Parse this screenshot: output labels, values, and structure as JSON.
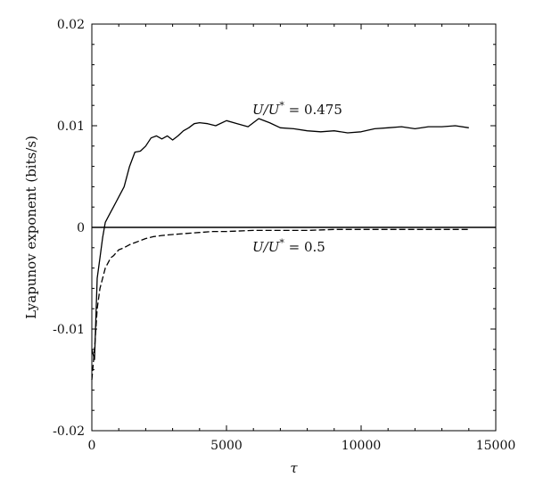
{
  "chart_data": {
    "type": "line",
    "title": "",
    "xlabel": "τ",
    "ylabel": "Lyapunov exponent (bits/s)",
    "xlim": [
      0,
      15000
    ],
    "ylim": [
      -0.02,
      0.02
    ],
    "x_ticks": [
      0,
      5000,
      10000,
      15000
    ],
    "x_tick_labels": [
      "0",
      "5000",
      "10000",
      "15000"
    ],
    "y_ticks": [
      -0.02,
      -0.01,
      0,
      0.01,
      0.02
    ],
    "y_tick_labels": [
      "-0.02",
      "-0.01",
      "0",
      "0.01",
      "0.02"
    ],
    "grid": false,
    "legend": "none",
    "reference_line_y": 0,
    "series": [
      {
        "label_var": "U/U*",
        "label_text": " = 0.475",
        "style": "solid",
        "color": "#000000",
        "x": [
          0,
          100,
          200,
          300,
          400,
          500,
          600,
          700,
          800,
          900,
          1000,
          1200,
          1400,
          1600,
          1800,
          2000,
          2200,
          2400,
          2600,
          2800,
          3000,
          3200,
          3400,
          3600,
          3800,
          4000,
          4300,
          4600,
          5000,
          5400,
          5800,
          6200,
          6600,
          7000,
          7500,
          8000,
          8500,
          9000,
          9500,
          10000,
          10500,
          11000,
          11500,
          12000,
          12500,
          13000,
          13500,
          14000
        ],
        "y": [
          -0.012,
          -0.013,
          -0.005,
          -0.003,
          -0.001,
          0.0005,
          0.001,
          0.0015,
          0.002,
          0.0025,
          0.003,
          0.004,
          0.006,
          0.0074,
          0.0075,
          0.008,
          0.0088,
          0.009,
          0.0087,
          0.009,
          0.0086,
          0.009,
          0.0095,
          0.0098,
          0.0102,
          0.0103,
          0.0102,
          0.01,
          0.0105,
          0.0102,
          0.0099,
          0.0107,
          0.0103,
          0.0098,
          0.0097,
          0.0095,
          0.0094,
          0.0095,
          0.0093,
          0.0094,
          0.0097,
          0.0098,
          0.0099,
          0.0097,
          0.0099,
          0.0099,
          0.01,
          0.0098
        ]
      },
      {
        "label_var": "U/U*",
        "label_text": " = 0.5",
        "style": "dashed",
        "color": "#000000",
        "x": [
          0,
          100,
          200,
          300,
          400,
          500,
          600,
          700,
          800,
          900,
          1000,
          1200,
          1400,
          1600,
          1800,
          2000,
          2300,
          2600,
          3000,
          3500,
          4000,
          4500,
          5000,
          6000,
          7000,
          8000,
          9000,
          10000,
          11000,
          12000,
          13000,
          14000
        ],
        "y": [
          -0.015,
          -0.012,
          -0.008,
          -0.006,
          -0.005,
          -0.004,
          -0.0035,
          -0.003,
          -0.0028,
          -0.0025,
          -0.0022,
          -0.002,
          -0.0017,
          -0.0015,
          -0.0013,
          -0.0011,
          -0.0009,
          -0.0008,
          -0.0007,
          -0.0006,
          -0.0005,
          -0.0004,
          -0.0004,
          -0.0003,
          -0.0003,
          -0.0003,
          -0.0002,
          -0.0002,
          -0.0002,
          -0.0002,
          -0.0002,
          -0.0002
        ]
      }
    ]
  }
}
